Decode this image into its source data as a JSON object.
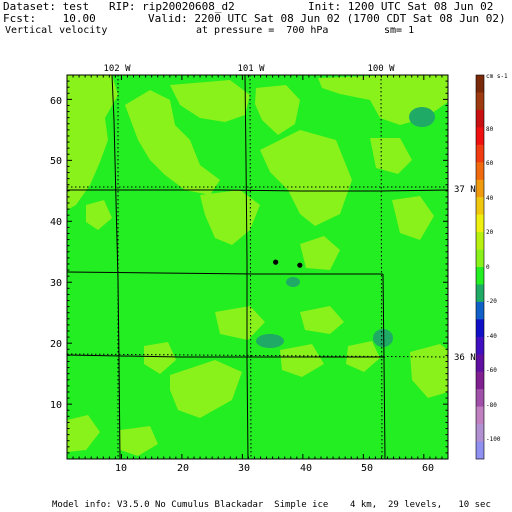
{
  "header": {
    "dataset": "Dataset: test   RIP: rip20020608_d2",
    "init": "Init: 1200 UTC Sat 08 Jun 02",
    "fcst": "Fcst:    10.00",
    "valid": "Valid: 2200 UTC Sat 08 Jun 02 (1700 CDT Sat 08 Jun 02)",
    "field": "Vertical velocity",
    "pressure": "at pressure =  700 hPa",
    "smoothing": "sm= 1"
  },
  "map": {
    "x_range": [
      1,
      64
    ],
    "y_range": [
      1,
      64
    ],
    "x_ticks": [
      "10",
      "20",
      "30",
      "40",
      "50",
      "60"
    ],
    "y_ticks": [
      "10",
      "20",
      "30",
      "40",
      "50",
      "60"
    ],
    "lon_labels": [
      "102 W",
      "101 W",
      "100 W"
    ],
    "lat_labels": [
      "37 N",
      "36 N"
    ],
    "background_color": "#22ee22",
    "shade_light_color": "#88f21a",
    "shade_teal_color": "#1faa66",
    "station_markers": [
      {
        "x": 35.5,
        "y": 33.3
      },
      {
        "x": 39.5,
        "y": 32.8
      }
    ]
  },
  "colorbar": {
    "unit": "cm s-1",
    "labels": [
      "80",
      "60",
      "40",
      "20",
      "0",
      "-20",
      "-40",
      "-60",
      "-80",
      "-100"
    ],
    "colors": [
      "#7a2a08",
      "#9e3a10",
      "#c81010",
      "#f01010",
      "#f03c10",
      "#f06a10",
      "#f09a10",
      "#f0c810",
      "#f0f010",
      "#b8f010",
      "#88f21a",
      "#22ee22",
      "#1faa66",
      "#1060c8",
      "#1010c8",
      "#4010c0",
      "#6010a0",
      "#802090",
      "#a050a8",
      "#c080c0",
      "#b090d0",
      "#9090f0"
    ]
  },
  "footer": {
    "model_info": "Model info: V3.5.0 No Cumulus Blackadar  Simple ice    4 km,  29 levels,   10 sec"
  }
}
